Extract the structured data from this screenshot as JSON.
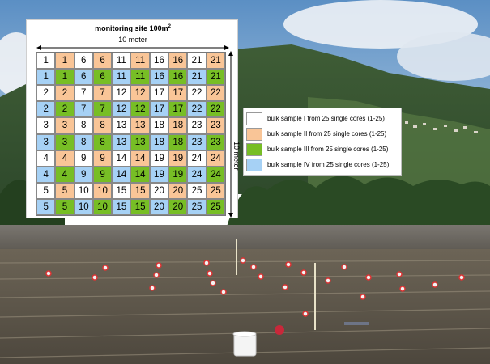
{
  "diagram": {
    "title": "monitoring site 100m",
    "title_superscript": "2",
    "width_label": "10 meter",
    "height_label": "10 meter",
    "colors": {
      "white": "#ffffff",
      "orange": "#f9c597",
      "green": "#77be25",
      "blue": "#a6d1f5"
    },
    "grid": [
      [
        {
          "v": "1",
          "c": "white"
        },
        {
          "v": "1",
          "c": "orange"
        },
        {
          "v": "6",
          "c": "white"
        },
        {
          "v": "6",
          "c": "orange"
        },
        {
          "v": "11",
          "c": "white"
        },
        {
          "v": "11",
          "c": "orange"
        },
        {
          "v": "16",
          "c": "white"
        },
        {
          "v": "16",
          "c": "orange"
        },
        {
          "v": "21",
          "c": "white"
        },
        {
          "v": "21",
          "c": "orange"
        }
      ],
      [
        {
          "v": "1",
          "c": "blue"
        },
        {
          "v": "1",
          "c": "green"
        },
        {
          "v": "6",
          "c": "blue"
        },
        {
          "v": "6",
          "c": "green"
        },
        {
          "v": "11",
          "c": "blue"
        },
        {
          "v": "11",
          "c": "green"
        },
        {
          "v": "16",
          "c": "blue"
        },
        {
          "v": "16",
          "c": "green"
        },
        {
          "v": "21",
          "c": "blue"
        },
        {
          "v": "21",
          "c": "green"
        }
      ],
      [
        {
          "v": "2",
          "c": "white"
        },
        {
          "v": "2",
          "c": "orange"
        },
        {
          "v": "7",
          "c": "white"
        },
        {
          "v": "7",
          "c": "orange"
        },
        {
          "v": "12",
          "c": "white"
        },
        {
          "v": "12",
          "c": "orange"
        },
        {
          "v": "17",
          "c": "white"
        },
        {
          "v": "17",
          "c": "orange"
        },
        {
          "v": "22",
          "c": "white"
        },
        {
          "v": "22",
          "c": "orange"
        }
      ],
      [
        {
          "v": "2",
          "c": "blue"
        },
        {
          "v": "2",
          "c": "green"
        },
        {
          "v": "7",
          "c": "blue"
        },
        {
          "v": "7",
          "c": "green"
        },
        {
          "v": "12",
          "c": "blue"
        },
        {
          "v": "12",
          "c": "green"
        },
        {
          "v": "17",
          "c": "blue"
        },
        {
          "v": "17",
          "c": "green"
        },
        {
          "v": "22",
          "c": "blue"
        },
        {
          "v": "22",
          "c": "green"
        }
      ],
      [
        {
          "v": "3",
          "c": "white"
        },
        {
          "v": "3",
          "c": "orange"
        },
        {
          "v": "8",
          "c": "white"
        },
        {
          "v": "8",
          "c": "orange"
        },
        {
          "v": "13",
          "c": "white"
        },
        {
          "v": "13",
          "c": "orange"
        },
        {
          "v": "18",
          "c": "white"
        },
        {
          "v": "18",
          "c": "orange"
        },
        {
          "v": "23",
          "c": "white"
        },
        {
          "v": "23",
          "c": "orange"
        }
      ],
      [
        {
          "v": "3",
          "c": "blue"
        },
        {
          "v": "3",
          "c": "green"
        },
        {
          "v": "8",
          "c": "blue"
        },
        {
          "v": "8",
          "c": "green"
        },
        {
          "v": "13",
          "c": "blue"
        },
        {
          "v": "13",
          "c": "green"
        },
        {
          "v": "18",
          "c": "blue"
        },
        {
          "v": "18",
          "c": "green"
        },
        {
          "v": "23",
          "c": "blue"
        },
        {
          "v": "23",
          "c": "green"
        }
      ],
      [
        {
          "v": "4",
          "c": "white"
        },
        {
          "v": "4",
          "c": "orange"
        },
        {
          "v": "9",
          "c": "white"
        },
        {
          "v": "9",
          "c": "orange"
        },
        {
          "v": "14",
          "c": "white"
        },
        {
          "v": "14",
          "c": "orange"
        },
        {
          "v": "19",
          "c": "white"
        },
        {
          "v": "19",
          "c": "orange"
        },
        {
          "v": "24",
          "c": "white"
        },
        {
          "v": "24",
          "c": "orange"
        }
      ],
      [
        {
          "v": "4",
          "c": "blue"
        },
        {
          "v": "4",
          "c": "green"
        },
        {
          "v": "9",
          "c": "blue"
        },
        {
          "v": "9",
          "c": "green"
        },
        {
          "v": "14",
          "c": "blue"
        },
        {
          "v": "14",
          "c": "green"
        },
        {
          "v": "19",
          "c": "blue"
        },
        {
          "v": "19",
          "c": "green"
        },
        {
          "v": "24",
          "c": "blue"
        },
        {
          "v": "24",
          "c": "green"
        }
      ],
      [
        {
          "v": "5",
          "c": "white"
        },
        {
          "v": "5",
          "c": "orange"
        },
        {
          "v": "10",
          "c": "white"
        },
        {
          "v": "10",
          "c": "orange"
        },
        {
          "v": "15",
          "c": "white"
        },
        {
          "v": "15",
          "c": "orange"
        },
        {
          "v": "20",
          "c": "white"
        },
        {
          "v": "20",
          "c": "orange"
        },
        {
          "v": "25",
          "c": "white"
        },
        {
          "v": "25",
          "c": "orange"
        }
      ],
      [
        {
          "v": "5",
          "c": "blue"
        },
        {
          "v": "5",
          "c": "green"
        },
        {
          "v": "10",
          "c": "blue"
        },
        {
          "v": "10",
          "c": "green"
        },
        {
          "v": "15",
          "c": "blue"
        },
        {
          "v": "15",
          "c": "green"
        },
        {
          "v": "20",
          "c": "blue"
        },
        {
          "v": "20",
          "c": "green"
        },
        {
          "v": "25",
          "c": "blue"
        },
        {
          "v": "25",
          "c": "green"
        }
      ]
    ]
  },
  "legend": {
    "items": [
      {
        "label": "bulk sample I from 25 single cores (1-25)",
        "color": "white"
      },
      {
        "label": "bulk sample II from 25 single cores (1-25)",
        "color": "orange"
      },
      {
        "label": "bulk sample III from 25 single cores (1-25)",
        "color": "green"
      },
      {
        "label": "bulk sample IV from 25 single cores (1-25)",
        "color": "blue"
      }
    ]
  }
}
